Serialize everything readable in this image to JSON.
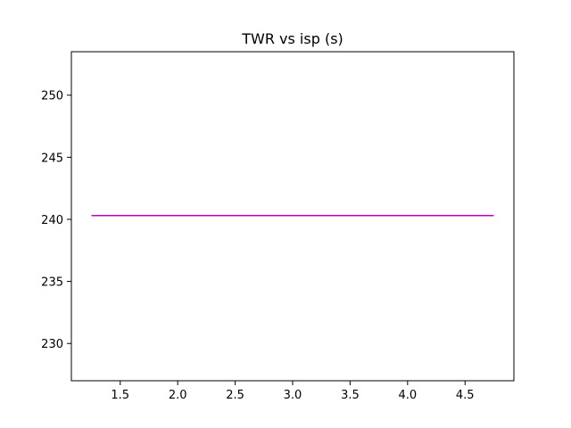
{
  "chart_data": {
    "type": "line",
    "title": "TWR vs isp (s)",
    "xlabel": "",
    "ylabel": "",
    "xlim": [
      1.075,
      4.925
    ],
    "ylim": [
      227.0,
      253.5
    ],
    "xticks": [
      1.5,
      2.0,
      2.5,
      3.0,
      3.5,
      4.0,
      4.5
    ],
    "xtick_labels": [
      "1.5",
      "2.0",
      "2.5",
      "3.0",
      "3.5",
      "4.0",
      "4.5"
    ],
    "yticks": [
      230,
      235,
      240,
      245,
      250
    ],
    "ytick_labels": [
      "230",
      "235",
      "240",
      "245",
      "250"
    ],
    "grid": false,
    "series": [
      {
        "color": "#bf00bf",
        "x": [
          1.25,
          4.75
        ],
        "y": [
          240.3,
          240.3
        ]
      }
    ]
  }
}
